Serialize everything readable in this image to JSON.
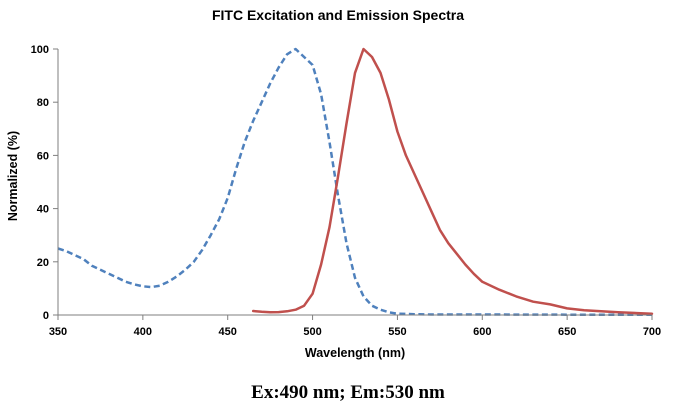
{
  "chart_data": {
    "type": "line",
    "title": "FITC Excitation and Emission Spectra",
    "xlabel": "Wavelength (nm)",
    "ylabel": "Normalized (%)",
    "xlim": [
      350,
      700
    ],
    "ylim": [
      0,
      100
    ],
    "xticks": [
      350,
      400,
      450,
      500,
      550,
      600,
      650,
      700
    ],
    "yticks": [
      0,
      20,
      40,
      60,
      80,
      100
    ],
    "grid": false,
    "legend": "none",
    "series": [
      {
        "color": "#4f81bd",
        "style": "dashed",
        "x": [
          350,
          355,
          360,
          365,
          370,
          375,
          380,
          385,
          390,
          395,
          400,
          405,
          410,
          415,
          420,
          425,
          430,
          435,
          440,
          445,
          450,
          455,
          460,
          465,
          470,
          475,
          480,
          485,
          490,
          495,
          500,
          505,
          510,
          515,
          520,
          525,
          530,
          535,
          540,
          545,
          550,
          560,
          570,
          580,
          600,
          650,
          700
        ],
        "y": [
          25,
          24,
          22.5,
          21,
          18.5,
          17,
          15.5,
          14,
          12.5,
          11.5,
          10.8,
          10.5,
          11,
          12.5,
          14.5,
          17,
          20,
          24.5,
          30,
          36,
          44,
          55,
          65,
          73,
          80,
          87,
          93,
          98,
          100,
          97,
          94,
          83,
          65,
          45,
          27,
          14,
          7,
          3.5,
          2,
          1,
          0.5,
          0.3,
          0.2,
          0.2,
          0.2,
          0.1,
          0.1
        ]
      },
      {
        "color": "#c0504d",
        "style": "solid",
        "x": [
          465,
          470,
          475,
          480,
          485,
          490,
          495,
          500,
          505,
          510,
          515,
          520,
          525,
          530,
          535,
          540,
          545,
          550,
          555,
          560,
          565,
          570,
          575,
          580,
          585,
          590,
          595,
          600,
          605,
          610,
          620,
          630,
          640,
          650,
          660,
          680,
          700
        ],
        "y": [
          1.5,
          1.2,
          1,
          1.1,
          1.4,
          2,
          3.5,
          8,
          19,
          33,
          52,
          72,
          91,
          100,
          97,
          91,
          81,
          69,
          60,
          53,
          46,
          39,
          32,
          27,
          23,
          19,
          15.5,
          12.5,
          11,
          9.5,
          7,
          5,
          4,
          2.5,
          1.8,
          1,
          0.5
        ]
      }
    ]
  },
  "caption": "Ex:490 nm; Em:530 nm"
}
